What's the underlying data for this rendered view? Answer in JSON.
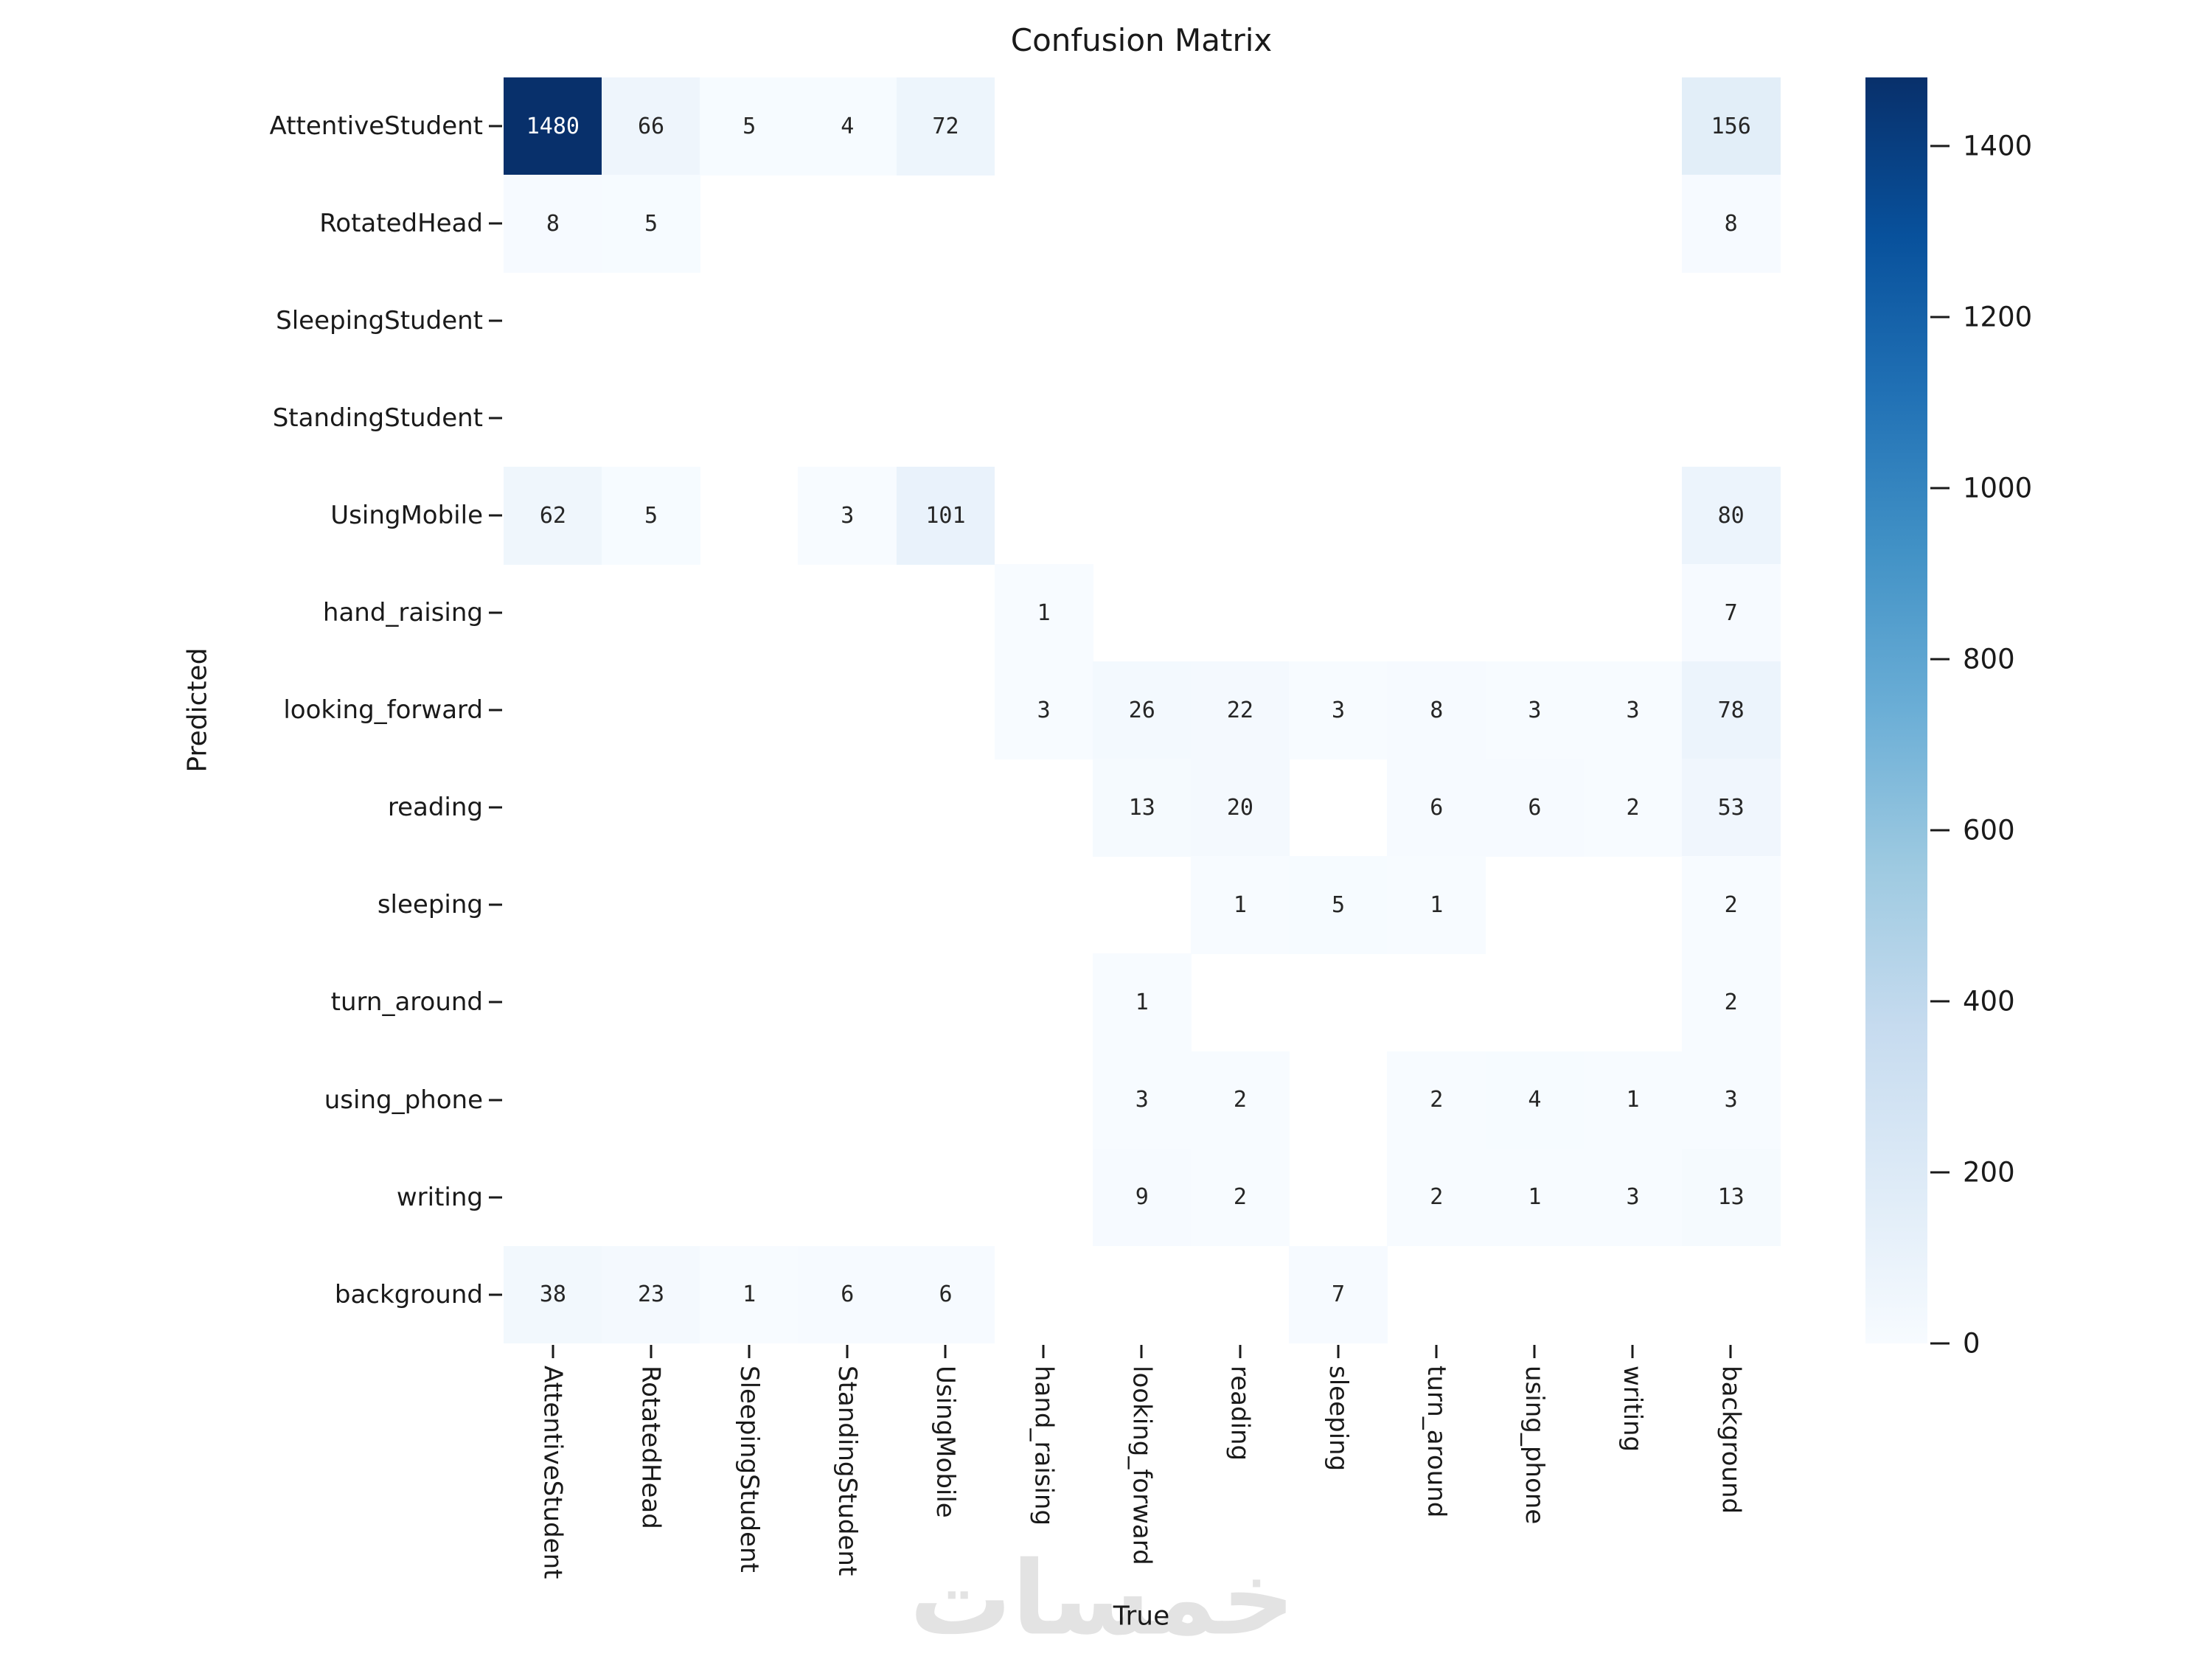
{
  "title": "Confusion Matrix",
  "watermark": "خمسات",
  "chart_data": {
    "type": "heatmap",
    "title": "Confusion Matrix",
    "xlabel": "True",
    "ylabel": "Predicted",
    "x_categories": [
      "AttentiveStudent",
      "RotatedHead",
      "SleepingStudent",
      "StandingStudent",
      "UsingMobile",
      "hand_raising",
      "looking_forward",
      "reading",
      "sleeping",
      "turn_around",
      "using_phone",
      "writing",
      "background"
    ],
    "y_categories": [
      "AttentiveStudent",
      "RotatedHead",
      "SleepingStudent",
      "StandingStudent",
      "UsingMobile",
      "hand_raising",
      "looking_forward",
      "reading",
      "sleeping",
      "turn_around",
      "using_phone",
      "writing",
      "background"
    ],
    "vmin": 0,
    "vmax": 1480,
    "colormap": "Blues",
    "colorbar_ticks": [
      1400,
      1200,
      1000,
      800,
      600,
      400,
      200,
      0
    ],
    "matrix": [
      [
        1480,
        66,
        5,
        4,
        72,
        null,
        null,
        null,
        null,
        null,
        null,
        null,
        156
      ],
      [
        8,
        5,
        null,
        null,
        null,
        null,
        null,
        null,
        null,
        null,
        null,
        null,
        8
      ],
      [
        null,
        null,
        null,
        null,
        null,
        null,
        null,
        null,
        null,
        null,
        null,
        null,
        null
      ],
      [
        null,
        null,
        null,
        null,
        null,
        null,
        null,
        null,
        null,
        null,
        null,
        null,
        null
      ],
      [
        62,
        5,
        null,
        3,
        101,
        null,
        null,
        null,
        null,
        null,
        null,
        null,
        80
      ],
      [
        null,
        null,
        null,
        null,
        null,
        1,
        null,
        null,
        null,
        null,
        null,
        null,
        7
      ],
      [
        null,
        null,
        null,
        null,
        null,
        3,
        26,
        22,
        3,
        8,
        3,
        3,
        78
      ],
      [
        null,
        null,
        null,
        null,
        null,
        null,
        13,
        20,
        null,
        6,
        6,
        2,
        53
      ],
      [
        null,
        null,
        null,
        null,
        null,
        null,
        null,
        1,
        5,
        1,
        null,
        null,
        2
      ],
      [
        null,
        null,
        null,
        null,
        null,
        null,
        1,
        null,
        null,
        null,
        null,
        null,
        2
      ],
      [
        null,
        null,
        null,
        null,
        null,
        null,
        3,
        2,
        null,
        2,
        4,
        1,
        3
      ],
      [
        null,
        null,
        null,
        null,
        null,
        null,
        9,
        2,
        null,
        2,
        1,
        3,
        13
      ],
      [
        38,
        23,
        1,
        6,
        6,
        null,
        null,
        null,
        7,
        null,
        null,
        null,
        null
      ]
    ]
  }
}
